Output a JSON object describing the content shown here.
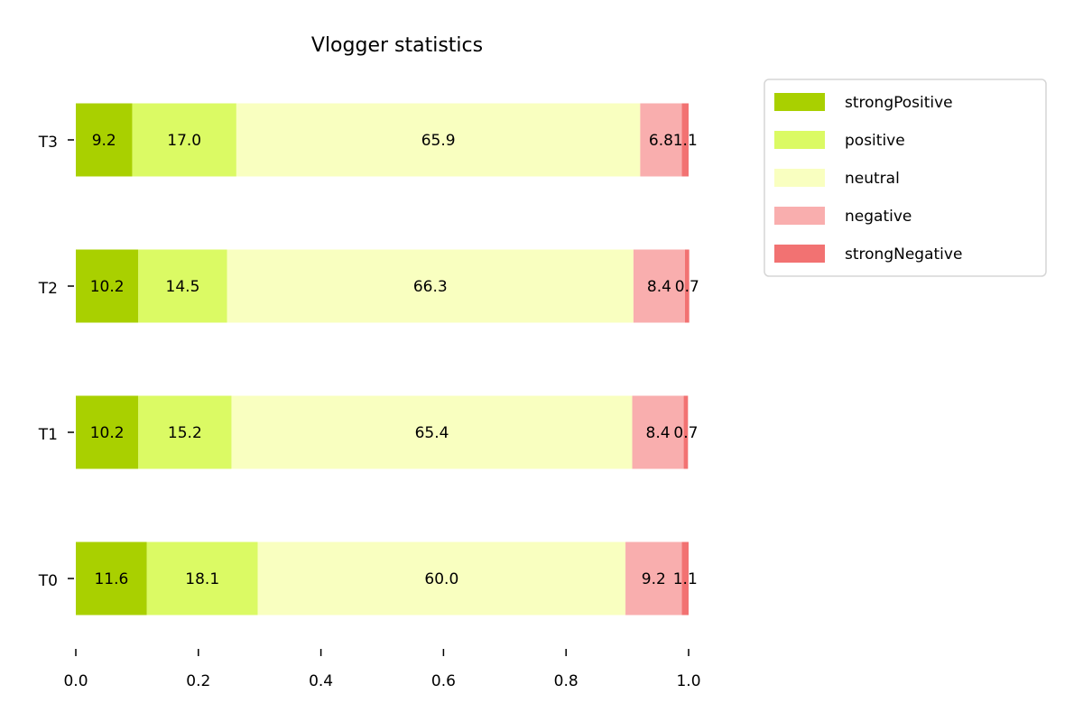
{
  "chart_data": {
    "type": "bar",
    "orientation": "horizontal",
    "stacked": true,
    "title": "Vlogger statistics",
    "xlabel": "",
    "ylabel": "",
    "categories": [
      "T0",
      "T1",
      "T2",
      "T3"
    ],
    "xlim": [
      0.0,
      1.0
    ],
    "xticks": [
      "0.0",
      "0.2",
      "0.4",
      "0.6",
      "0.8",
      "1.0"
    ],
    "grid": false,
    "legend_position": "upper right, outside plot",
    "series": [
      {
        "name": "strongPositive",
        "color": "#a9d000",
        "values": [
          0.116,
          0.102,
          0.102,
          0.092
        ],
        "labels": [
          "11.6",
          "10.2",
          "10.2",
          "9.2"
        ]
      },
      {
        "name": "positive",
        "color": "#dbfa64",
        "values": [
          0.181,
          0.152,
          0.145,
          0.17
        ],
        "labels": [
          "18.1",
          "15.2",
          "14.5",
          "17.0"
        ]
      },
      {
        "name": "neutral",
        "color": "#f9ffc0",
        "values": [
          0.6,
          0.654,
          0.663,
          0.659
        ],
        "labels": [
          "60.0",
          "65.4",
          "66.3",
          "65.9"
        ]
      },
      {
        "name": "negative",
        "color": "#f9aeae",
        "values": [
          0.092,
          0.084,
          0.084,
          0.068
        ],
        "labels": [
          "9.2",
          "8.4",
          "8.4",
          "6.8"
        ]
      },
      {
        "name": "strongNegative",
        "color": "#f27272",
        "values": [
          0.011,
          0.007,
          0.007,
          0.011
        ],
        "labels": [
          "1.1",
          "0.7",
          "0.7",
          "1.1"
        ]
      }
    ]
  }
}
